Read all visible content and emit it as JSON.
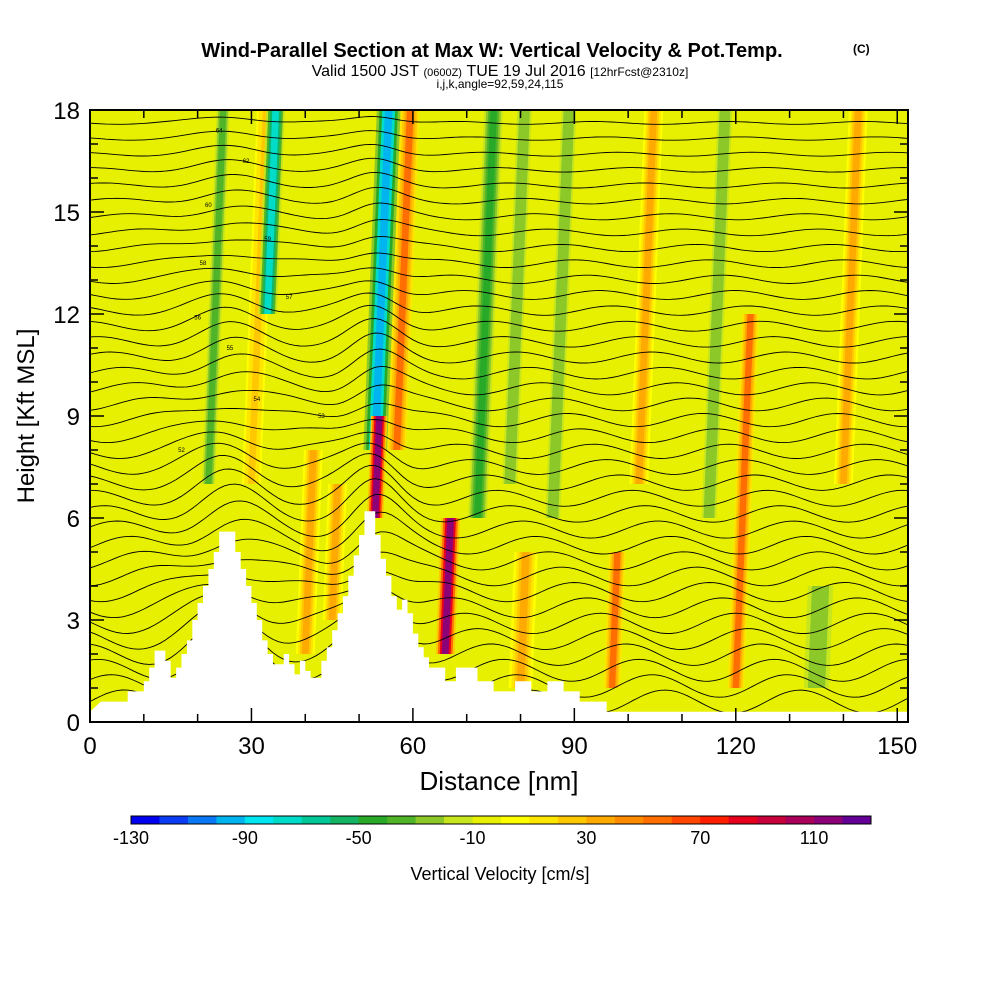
{
  "chart_data": {
    "type": "heatmap",
    "title": "Wind-Parallel Section at Max W: Vertical Velocity & Pot.Temp.",
    "title_mark": "(C)",
    "subtitle": {
      "valid": "Valid 1500 JST",
      "utc": "(0600Z)",
      "date": "TUE 19 Jul 2016",
      "forecast": "[12hrFcst@2310z]"
    },
    "grid_info": "i,j,k,angle=92,59,24,115",
    "xlabel": "Distance [nm]",
    "ylabel": "Height [Kft MSL]",
    "xlim": [
      0,
      152
    ],
    "ylim": [
      0,
      18
    ],
    "x_ticks": [
      "0",
      "30",
      "60",
      "90",
      "120",
      "150"
    ],
    "y_ticks": [
      "0",
      "3",
      "6",
      "9",
      "12",
      "15",
      "18"
    ],
    "colorbar": {
      "label": "Vertical Velocity [cm/s]",
      "range": [
        -130,
        130
      ],
      "step": 10,
      "tick_labels": [
        "-130",
        "-90",
        "-50",
        "-10",
        "30",
        "70",
        "110"
      ],
      "colors": [
        "#0000f0",
        "#0a3cf5",
        "#0a78f5",
        "#00b4f0",
        "#00e6f0",
        "#00dcc8",
        "#00c896",
        "#14b464",
        "#28aa28",
        "#50b428",
        "#8cc828",
        "#c8e61e",
        "#e6f000",
        "#ffff00",
        "#ffe600",
        "#ffc800",
        "#ffaa00",
        "#ff8c00",
        "#ff6e00",
        "#ff4600",
        "#ff1e00",
        "#e6001e",
        "#c8003c",
        "#aa005a",
        "#8c0078",
        "#640096"
      ]
    },
    "velocity_features": [
      {
        "x": 30,
        "y0": 7,
        "y1": 18,
        "w": 22,
        "width": 3
      },
      {
        "x": 33,
        "y0": 12,
        "y1": 18,
        "w": -80,
        "width": 3
      },
      {
        "x": 22,
        "y0": 7,
        "y1": 18,
        "w": -40,
        "width": 2.5
      },
      {
        "x": 53,
        "y0": 8,
        "y1": 18,
        "w": -100,
        "width": 4
      },
      {
        "x": 57,
        "y0": 8,
        "y1": 18,
        "w": 50,
        "width": 3
      },
      {
        "x": 53,
        "y0": 6,
        "y1": 9,
        "w": 110,
        "width": 2.5
      },
      {
        "x": 66,
        "y0": 2,
        "y1": 6,
        "w": 110,
        "width": 3
      },
      {
        "x": 72,
        "y0": 6,
        "y1": 18,
        "w": -50,
        "width": 3
      },
      {
        "x": 78,
        "y0": 7,
        "y1": 18,
        "w": -30,
        "width": 3
      },
      {
        "x": 86,
        "y0": 6,
        "y1": 18,
        "w": -30,
        "width": 3
      },
      {
        "x": 115,
        "y0": 6,
        "y1": 18,
        "w": -30,
        "width": 3
      },
      {
        "x": 120,
        "y0": 1,
        "y1": 12,
        "w": 50,
        "width": 2.5
      },
      {
        "x": 135,
        "y0": 1,
        "y1": 4,
        "w": -30,
        "width": 6
      },
      {
        "x": 97,
        "y0": 1,
        "y1": 5,
        "w": 50,
        "width": 2.5
      },
      {
        "x": 40,
        "y0": 2,
        "y1": 8,
        "w": 30,
        "width": 3
      },
      {
        "x": 45,
        "y0": 3,
        "y1": 7,
        "w": 30,
        "width": 3
      },
      {
        "x": 80,
        "y0": 1,
        "y1": 5,
        "w": 30,
        "width": 4
      },
      {
        "x": 102,
        "y0": 7,
        "y1": 18,
        "w": 30,
        "width": 3
      },
      {
        "x": 140,
        "y0": 7,
        "y1": 18,
        "w": 30,
        "width": 3
      }
    ],
    "terrain": [
      [
        0,
        0.3
      ],
      [
        2,
        0.6
      ],
      [
        7,
        0.6
      ],
      [
        7,
        0.9
      ],
      [
        10,
        0.9
      ],
      [
        10,
        1.2
      ],
      [
        11,
        1.2
      ],
      [
        11,
        1.6
      ],
      [
        12,
        1.6
      ],
      [
        12,
        2.0
      ],
      [
        12,
        2.1
      ],
      [
        13,
        2.1
      ],
      [
        14,
        2.1
      ],
      [
        14,
        1.8
      ],
      [
        15,
        1.8
      ],
      [
        15,
        1.3
      ],
      [
        16,
        1.3
      ],
      [
        16,
        1.6
      ],
      [
        17,
        1.6
      ],
      [
        17,
        2.0
      ],
      [
        18,
        2.0
      ],
      [
        18,
        2.4
      ],
      [
        19,
        2.4
      ],
      [
        19,
        3.0
      ],
      [
        20,
        3.0
      ],
      [
        20,
        3.5
      ],
      [
        21,
        3.5
      ],
      [
        21,
        4.0
      ],
      [
        22,
        4.0
      ],
      [
        22,
        4.5
      ],
      [
        23,
        4.5
      ],
      [
        23,
        5.0
      ],
      [
        24,
        5.0
      ],
      [
        24,
        5.6
      ],
      [
        26,
        5.6
      ],
      [
        27,
        5.6
      ],
      [
        27,
        5.0
      ],
      [
        28,
        5.0
      ],
      [
        28,
        4.5
      ],
      [
        29,
        4.5
      ],
      [
        29,
        4.0
      ],
      [
        30,
        4.0
      ],
      [
        30,
        3.5
      ],
      [
        31,
        3.5
      ],
      [
        31,
        3.0
      ],
      [
        32,
        3.0
      ],
      [
        32,
        2.4
      ],
      [
        33,
        2.4
      ],
      [
        33,
        2.0
      ],
      [
        34,
        2.0
      ],
      [
        34,
        1.7
      ],
      [
        36,
        1.7
      ],
      [
        36,
        2.0
      ],
      [
        37,
        2.0
      ],
      [
        37,
        1.7
      ],
      [
        38,
        1.7
      ],
      [
        38,
        1.4
      ],
      [
        39,
        1.4
      ],
      [
        39,
        1.8
      ],
      [
        40,
        1.8
      ],
      [
        40,
        1.5
      ],
      [
        41,
        1.5
      ],
      [
        41,
        1.3
      ],
      [
        43,
        1.3
      ],
      [
        43,
        1.8
      ],
      [
        44,
        1.8
      ],
      [
        44,
        2.2
      ],
      [
        45,
        2.2
      ],
      [
        45,
        2.7
      ],
      [
        46,
        2.7
      ],
      [
        46,
        3.2
      ],
      [
        47,
        3.2
      ],
      [
        47,
        3.7
      ],
      [
        48,
        3.7
      ],
      [
        48,
        4.3
      ],
      [
        49,
        4.3
      ],
      [
        49,
        4.9
      ],
      [
        50,
        4.9
      ],
      [
        50,
        5.5
      ],
      [
        51,
        5.5
      ],
      [
        51,
        6.2
      ],
      [
        53,
        6.2
      ],
      [
        53,
        5.5
      ],
      [
        54,
        5.5
      ],
      [
        54,
        4.8
      ],
      [
        55,
        4.8
      ],
      [
        55,
        4.3
      ],
      [
        56,
        4.3
      ],
      [
        56,
        3.7
      ],
      [
        57,
        3.7
      ],
      [
        57,
        3.3
      ],
      [
        58,
        3.3
      ],
      [
        58,
        3.6
      ],
      [
        59,
        3.6
      ],
      [
        59,
        3.2
      ],
      [
        60,
        3.2
      ],
      [
        60,
        2.6
      ],
      [
        61,
        2.6
      ],
      [
        61,
        2.2
      ],
      [
        62,
        2.2
      ],
      [
        62,
        1.9
      ],
      [
        63,
        1.9
      ],
      [
        63,
        1.6
      ],
      [
        66,
        1.6
      ],
      [
        66,
        1.2
      ],
      [
        68,
        1.2
      ],
      [
        68,
        1.6
      ],
      [
        72,
        1.6
      ],
      [
        72,
        1.2
      ],
      [
        75,
        1.2
      ],
      [
        75,
        0.9
      ],
      [
        79,
        0.9
      ],
      [
        79,
        1.2
      ],
      [
        82,
        1.2
      ],
      [
        82,
        0.9
      ],
      [
        85,
        0.9
      ],
      [
        85,
        1.2
      ],
      [
        88,
        1.2
      ],
      [
        88,
        0.9
      ],
      [
        91,
        0.9
      ],
      [
        91,
        0.6
      ],
      [
        96,
        0.6
      ],
      [
        96,
        0.3
      ],
      [
        108,
        0.3
      ],
      [
        152,
        0.3
      ]
    ],
    "theta_labels": {
      "64": [
        24,
        17.4
      ],
      "62": [
        29,
        16.5
      ],
      "60": [
        22,
        15.2
      ],
      "59": [
        33,
        14.2
      ],
      "58": [
        21,
        13.5
      ],
      "57": [
        37,
        12.5
      ],
      "56": [
        20,
        11.9
      ],
      "55": [
        26,
        11.0
      ],
      "54": [
        31,
        9.5
      ],
      "53": [
        43,
        9.0
      ],
      "52": [
        17,
        8.0
      ]
    }
  }
}
